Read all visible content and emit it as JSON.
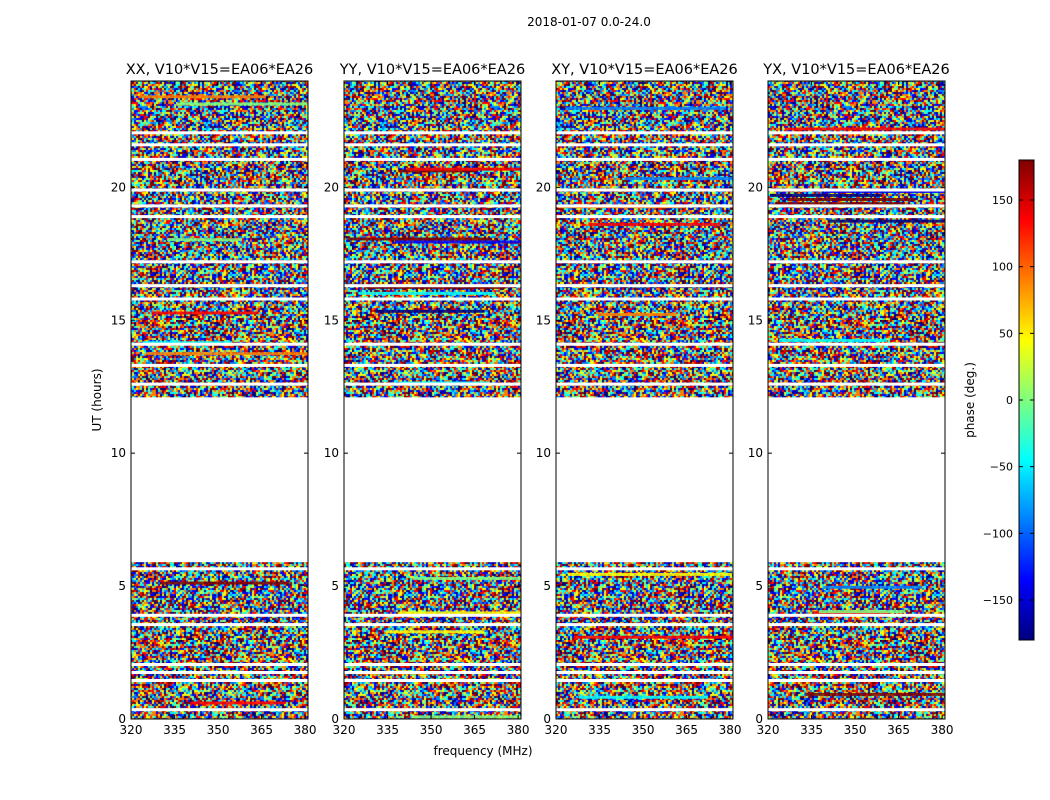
{
  "figure": {
    "suptitle": "2018-01-07 0.0-24.0",
    "xlabel": "frequency (MHz)",
    "ylabel": "UT (hours)"
  },
  "colorbar": {
    "label": "phase (deg.)",
    "range": [
      -180,
      180
    ],
    "ticks": [
      -150,
      -100,
      -50,
      0,
      50,
      100,
      150
    ],
    "tick_labels": [
      "−150",
      "−100",
      "−50",
      "0",
      "50",
      "100",
      "150"
    ],
    "colormap": "jet",
    "colors": [
      "#00007f",
      "#0000ff",
      "#007fff",
      "#00ffff",
      "#7fff7f",
      "#ffff00",
      "#ff7f00",
      "#ff0000",
      "#7f0000"
    ]
  },
  "chart_data": [
    {
      "type": "heatmap",
      "title": "XX, V10*V15=EA06*EA26",
      "x_range": [
        320,
        381
      ],
      "x_ticks": [
        320,
        335,
        350,
        365,
        380
      ],
      "y_range": [
        0,
        24
      ],
      "y_ticks": [
        0,
        5,
        10,
        15,
        20
      ],
      "value": "phase (deg.)",
      "no_data_intervals": [
        [
          5.9,
          12.1
        ]
      ],
      "flagged_times": [
        0.35,
        1.45,
        1.75,
        2.05,
        3.55,
        3.9,
        5.65,
        12.6,
        13.3,
        14.1,
        15.8,
        16.3,
        17.2,
        18.9,
        19.3,
        19.9,
        21.05,
        21.6,
        22.05
      ]
    },
    {
      "type": "heatmap",
      "title": "YY, V10*V15=EA06*EA26",
      "x_range": [
        320,
        381
      ],
      "x_ticks": [
        320,
        335,
        350,
        365,
        380
      ],
      "y_range": [
        0,
        24
      ],
      "y_ticks": [
        0,
        5,
        10,
        15,
        20
      ],
      "value": "phase (deg.)",
      "no_data_intervals": [
        [
          5.9,
          12.1
        ]
      ],
      "flagged_times": [
        0.35,
        1.45,
        1.75,
        2.05,
        3.55,
        3.9,
        5.65,
        12.6,
        13.3,
        14.1,
        15.8,
        16.3,
        17.2,
        18.9,
        19.3,
        19.9,
        21.05,
        21.6,
        22.05
      ]
    },
    {
      "type": "heatmap",
      "title": "XY, V10*V15=EA06*EA26",
      "x_range": [
        320,
        381
      ],
      "x_ticks": [
        320,
        335,
        350,
        365,
        380
      ],
      "y_range": [
        0,
        24
      ],
      "y_ticks": [
        0,
        5,
        10,
        15,
        20
      ],
      "value": "phase (deg.)",
      "no_data_intervals": [
        [
          5.9,
          12.1
        ]
      ],
      "flagged_times": [
        0.35,
        1.45,
        1.75,
        2.05,
        3.55,
        3.9,
        5.65,
        12.6,
        13.3,
        14.1,
        15.8,
        16.3,
        17.2,
        18.9,
        19.3,
        19.9,
        21.05,
        21.6,
        22.05
      ]
    },
    {
      "type": "heatmap",
      "title": "YX, V10*V15=EA06*EA26",
      "x_range": [
        320,
        381
      ],
      "x_ticks": [
        320,
        335,
        350,
        365,
        380
      ],
      "y_range": [
        0,
        24
      ],
      "y_ticks": [
        0,
        5,
        10,
        15,
        20
      ],
      "value": "phase (deg.)",
      "no_data_intervals": [
        [
          5.9,
          12.1
        ]
      ],
      "flagged_times": [
        0.35,
        1.45,
        1.75,
        2.05,
        3.55,
        3.9,
        5.65,
        12.6,
        13.3,
        14.1,
        15.8,
        16.3,
        17.2,
        18.9,
        19.3,
        19.9,
        21.05,
        21.6,
        22.05
      ]
    }
  ]
}
